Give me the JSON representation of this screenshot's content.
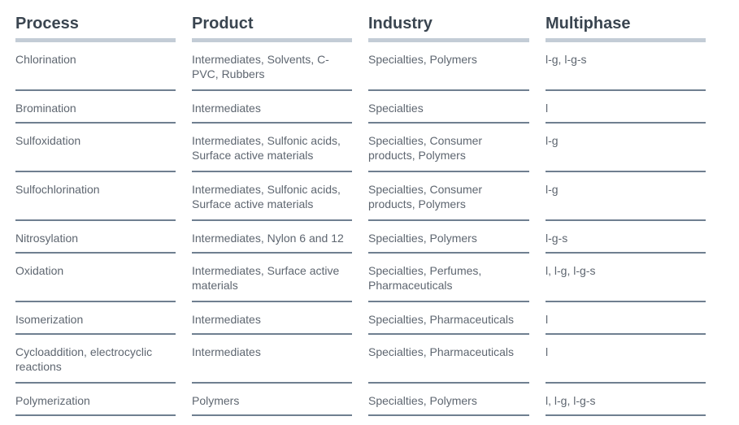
{
  "headers": [
    "Process",
    "Product",
    "Industry",
    "Multiphase"
  ],
  "rows": [
    [
      "Chlorination",
      "Intermediates, Solvents, C-PVC, Rubbers",
      "Specialties, Polymers",
      "l-g, l-g-s"
    ],
    [
      "Bromination",
      "Intermediates",
      "Specialties",
      "l"
    ],
    [
      "Sulfoxidation",
      "Intermediates, Sulfonic acids, Surface active materials",
      "Specialties, Consumer products, Polymers",
      "l-g"
    ],
    [
      "Sulfochlorination",
      "Intermediates, Sulfonic acids, Surface active materials",
      "Specialties, Consumer products, Polymers",
      "l-g"
    ],
    [
      "Nitrosylation",
      "Intermediates, Nylon 6 and 12",
      "Specialties, Polymers",
      "l-g-s"
    ],
    [
      "Oxidation",
      "Intermediates, Surface active materials",
      "Specialties, Perfumes, Pharmaceuticals",
      "l, l-g, l-g-s"
    ],
    [
      "Isomerization",
      "Intermediates",
      "Specialties, Pharmaceuticals",
      "l"
    ],
    [
      "Cycloaddition, electrocyclic reactions",
      "Intermediates",
      "Specialties, Pharmaceuticals",
      "l"
    ],
    [
      "Polymerization",
      "Polymers",
      "Specialties, Polymers",
      "l, l-g, l-g-s"
    ]
  ]
}
